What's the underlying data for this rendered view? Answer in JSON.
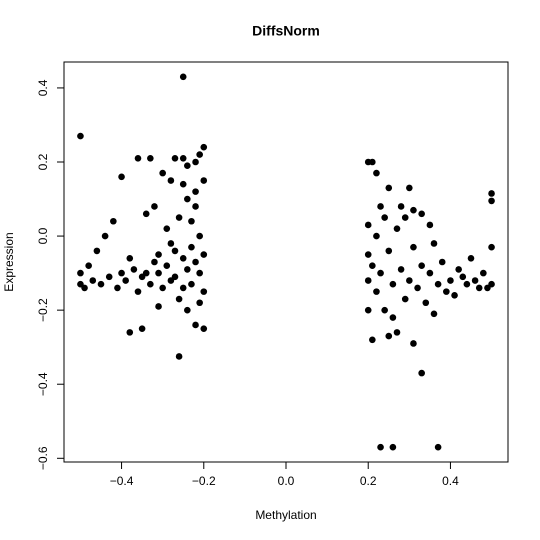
{
  "chart_data": {
    "type": "scatter",
    "title": "DiffsNorm",
    "x_label": "Methylation",
    "y_label": "Expression",
    "color": "#000000",
    "xlim": [
      -0.54,
      0.54
    ],
    "ylim": [
      -0.61,
      0.47
    ],
    "xticks": [
      {
        "value": -0.4,
        "label": "−0.4"
      },
      {
        "value": -0.2,
        "label": "−0.2"
      },
      {
        "value": 0,
        "label": "0.0"
      },
      0.2,
      0.4
    ],
    "yticks": [
      {
        "value": -0.6,
        "label": "−0.6"
      },
      {
        "value": -0.4,
        "label": "−0.4"
      },
      {
        "value": -0.2,
        "label": "−0.2"
      },
      {
        "value": 0,
        "label": "0.0"
      },
      0.2,
      0.4
    ],
    "x": [
      -0.5,
      -0.25,
      -0.26,
      -0.4,
      -0.38,
      -0.35,
      -0.36,
      -0.33,
      -0.2,
      -0.21,
      -0.27,
      -0.25,
      -0.24,
      -0.22,
      -0.3,
      -0.28,
      -0.32,
      -0.34,
      -0.42,
      -0.44,
      -0.46,
      -0.48,
      -0.5,
      -0.5,
      -0.49,
      -0.47,
      -0.45,
      -0.43,
      -0.41,
      -0.39,
      -0.37,
      -0.36,
      -0.34,
      -0.33,
      -0.31,
      -0.3,
      -0.29,
      -0.28,
      -0.27,
      -0.26,
      -0.26,
      -0.25,
      -0.24,
      -0.24,
      -0.23,
      -0.23,
      -0.22,
      -0.22,
      -0.21,
      -0.21,
      -0.2,
      -0.2,
      -0.2,
      -0.2,
      -0.21,
      -0.22,
      -0.23,
      -0.24,
      -0.25,
      -0.27,
      -0.28,
      -0.29,
      -0.31,
      -0.32,
      -0.35,
      -0.38,
      -0.4,
      -0.31,
      -0.25,
      -0.22,
      0.2,
      0.21,
      0.23,
      0.26,
      0.37,
      0.33,
      0.5,
      0.5,
      0.22,
      0.25,
      0.3,
      0.31,
      0.33,
      0.28,
      0.24,
      0.21,
      0.25,
      0.31,
      0.27,
      0.2,
      0.2,
      0.2,
      0.2,
      0.21,
      0.22,
      0.22,
      0.23,
      0.24,
      0.25,
      0.26,
      0.27,
      0.28,
      0.29,
      0.3,
      0.31,
      0.32,
      0.33,
      0.34,
      0.35,
      0.36,
      0.37,
      0.38,
      0.4,
      0.41,
      0.42,
      0.44,
      0.45,
      0.46,
      0.48,
      0.49,
      0.5,
      0.5,
      0.47,
      0.43,
      0.39,
      0.36,
      0.26,
      0.23,
      0.29,
      0.35
    ],
    "values": [
      0.27,
      0.43,
      -0.325,
      0.16,
      -0.26,
      -0.25,
      0.21,
      0.21,
      0.24,
      0.22,
      0.21,
      0.21,
      0.19,
      0.2,
      0.17,
      0.15,
      0.08,
      0.06,
      0.04,
      0.0,
      -0.04,
      -0.08,
      -0.1,
      -0.13,
      -0.14,
      -0.12,
      -0.13,
      -0.11,
      -0.14,
      -0.12,
      -0.09,
      -0.15,
      -0.1,
      -0.13,
      -0.05,
      -0.14,
      -0.08,
      -0.02,
      -0.11,
      0.05,
      -0.17,
      -0.06,
      0.1,
      -0.2,
      -0.03,
      -0.13,
      0.08,
      -0.24,
      0.0,
      -0.1,
      0.15,
      -0.05,
      -0.15,
      -0.25,
      -0.18,
      -0.07,
      0.04,
      -0.09,
      -0.14,
      -0.04,
      -0.12,
      0.02,
      -0.1,
      -0.07,
      -0.11,
      -0.06,
      -0.1,
      -0.19,
      0.14,
      0.12,
      0.2,
      0.2,
      -0.57,
      -0.57,
      -0.57,
      -0.37,
      0.115,
      0.095,
      0.17,
      0.13,
      0.13,
      0.07,
      0.06,
      0.08,
      0.05,
      -0.28,
      -0.27,
      -0.29,
      -0.26,
      0.03,
      -0.05,
      -0.12,
      -0.2,
      -0.08,
      -0.15,
      0.0,
      -0.1,
      -0.2,
      -0.04,
      -0.13,
      0.02,
      -0.09,
      -0.17,
      -0.12,
      -0.03,
      -0.14,
      -0.08,
      -0.18,
      -0.1,
      -0.02,
      -0.13,
      -0.07,
      -0.12,
      -0.16,
      -0.09,
      -0.13,
      -0.06,
      -0.12,
      -0.1,
      -0.14,
      -0.13,
      -0.03,
      -0.14,
      -0.11,
      -0.15,
      -0.21,
      -0.22,
      0.08,
      0.05,
      0.03
    ]
  }
}
